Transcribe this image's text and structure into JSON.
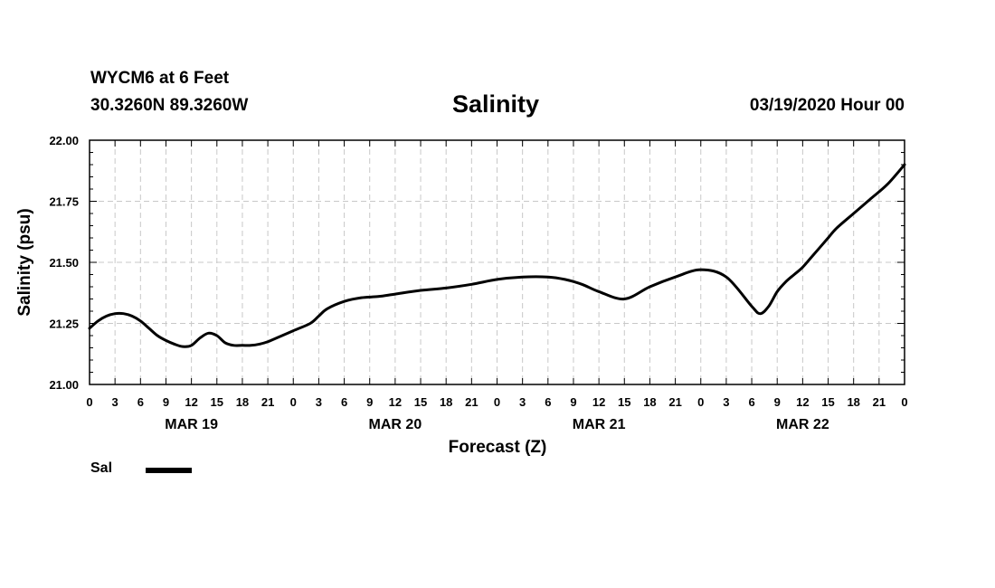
{
  "header": {
    "station": "WYCM6 at 6 Feet",
    "coords": "30.3260N 89.3260W",
    "title": "Salinity",
    "datetime": "03/19/2020 Hour 00"
  },
  "chart_data": {
    "type": "line",
    "title": "Salinity",
    "xlabel": "Forecast (Z)",
    "ylabel": "Salinity (psu)",
    "ylim": [
      21.0,
      22.0
    ],
    "xlim": [
      0,
      96
    ],
    "x_units": "hours since 03/19/2020 00Z",
    "y_ticks": [
      "21.00",
      "21.25",
      "21.50",
      "21.75",
      "22.00"
    ],
    "x_tick_labels": [
      "0",
      "3",
      "6",
      "9",
      "12",
      "15",
      "18",
      "21",
      "0",
      "3",
      "6",
      "9",
      "12",
      "15",
      "18",
      "21",
      "0",
      "3",
      "6",
      "9",
      "12",
      "15",
      "18",
      "21",
      "0",
      "3",
      "6",
      "9",
      "12",
      "15",
      "18",
      "21",
      "0"
    ],
    "day_labels": [
      "MAR 19",
      "MAR 20",
      "MAR 21",
      "MAR 22"
    ],
    "grid": true,
    "legend": "bottom-left",
    "series": [
      {
        "name": "Sal",
        "color": "#000000",
        "x": [
          0,
          1,
          2,
          3,
          4,
          5,
          6,
          7,
          8,
          9,
          10,
          11,
          12,
          13,
          14,
          15,
          16,
          17,
          18,
          19,
          20,
          21,
          22,
          24,
          26,
          27,
          28,
          30,
          32,
          34,
          36,
          39,
          42,
          45,
          48,
          51,
          54,
          56,
          58,
          60,
          63,
          66,
          69,
          72,
          75,
          78,
          79,
          80,
          81,
          82,
          83,
          84,
          85,
          86,
          87,
          88,
          90,
          92,
          94,
          96
        ],
        "values": [
          21.23,
          21.26,
          21.28,
          21.29,
          21.29,
          21.28,
          21.26,
          21.23,
          21.2,
          21.18,
          21.165,
          21.155,
          21.16,
          21.19,
          21.21,
          21.2,
          21.17,
          21.16,
          21.16,
          21.16,
          21.165,
          21.175,
          21.19,
          21.22,
          21.25,
          21.28,
          21.31,
          21.34,
          21.355,
          21.36,
          21.37,
          21.385,
          21.395,
          21.41,
          21.43,
          21.44,
          21.44,
          21.43,
          21.41,
          21.38,
          21.35,
          21.4,
          21.44,
          21.47,
          21.44,
          21.32,
          21.29,
          21.32,
          21.38,
          21.42,
          21.45,
          21.48,
          21.52,
          21.56,
          21.6,
          21.64,
          21.7,
          21.76,
          21.82,
          21.9
        ]
      }
    ]
  }
}
